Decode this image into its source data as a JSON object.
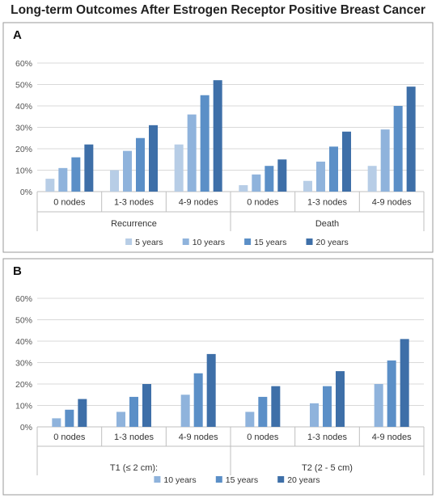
{
  "title": "Long-term Outcomes After Estrogen Receptor Positive Breast Cancer",
  "chart_data": [
    {
      "panel_label": "A",
      "type": "bar",
      "ylim": [
        0,
        60
      ],
      "yticks": [
        "0%",
        "10%",
        "20%",
        "30%",
        "40%",
        "50%",
        "60%"
      ],
      "groups": [
        "Recurrence",
        "Death"
      ],
      "categories": [
        "0 nodes",
        "1-3 nodes",
        "4-9 nodes",
        "0 nodes",
        "1-3 nodes",
        "4-9 nodes"
      ],
      "legend_position": "bottom",
      "series": [
        {
          "name": "5 years",
          "color": "#b7cde6",
          "values": [
            6,
            10,
            22,
            3,
            5,
            12
          ]
        },
        {
          "name": "10 years",
          "color": "#8fb3dc",
          "values": [
            11,
            19,
            36,
            8,
            14,
            29
          ]
        },
        {
          "name": "15 years",
          "color": "#5b8fc7",
          "values": [
            16,
            25,
            45,
            12,
            21,
            40
          ]
        },
        {
          "name": "20 years",
          "color": "#3e6fa8",
          "values": [
            22,
            31,
            52,
            15,
            28,
            49
          ]
        }
      ]
    },
    {
      "panel_label": "B",
      "type": "bar",
      "ylim": [
        0,
        60
      ],
      "yticks": [
        "0%",
        "10%",
        "20%",
        "30%",
        "40%",
        "50%",
        "60%"
      ],
      "groups": [
        "T1 (≤ 2 cm):",
        "T2 (2 - 5 cm)"
      ],
      "categories": [
        "0 nodes",
        "1-3 nodes",
        "4-9 nodes",
        "0 nodes",
        "1-3 nodes",
        "4-9 nodes"
      ],
      "legend_position": "bottom",
      "series": [
        {
          "name": "10 years",
          "color": "#8fb3dc",
          "values": [
            4,
            7,
            15,
            7,
            11,
            20
          ]
        },
        {
          "name": "15 years",
          "color": "#5b8fc7",
          "values": [
            8,
            14,
            25,
            14,
            19,
            31
          ]
        },
        {
          "name": "20 years",
          "color": "#3e6fa8",
          "values": [
            13,
            20,
            34,
            19,
            26,
            41
          ]
        }
      ]
    }
  ]
}
